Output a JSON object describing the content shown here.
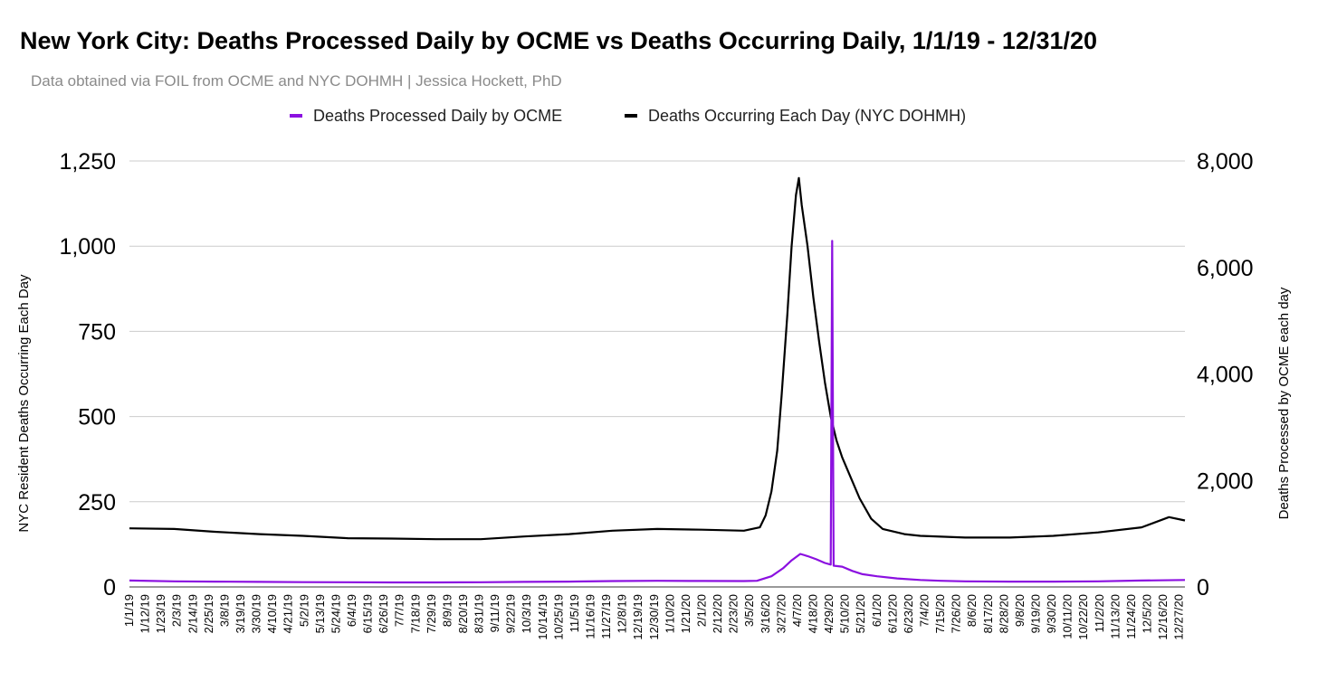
{
  "chart_data": {
    "type": "line",
    "title": "New York City: Deaths Processed Daily by OCME vs Deaths Occurring Daily, 1/1/19 - 12/31/20",
    "subtitle": "Data obtained via FOIL from OCME and NYC DOHMH | Jessica Hockett, PhD",
    "ylabel_left": "NYC Resident Deaths Occurring Each Day",
    "ylabel_right": "Deaths Processed by OCME each day",
    "ylim_left": [
      0,
      1250
    ],
    "ylim_right": [
      0,
      8000
    ],
    "yticks_left": [
      "0",
      "250",
      "500",
      "750",
      "1,000",
      "1,250"
    ],
    "yticks_right": [
      "0",
      "2,000",
      "4,000",
      "6,000",
      "8,000"
    ],
    "x_start_date": "1/1/19",
    "x_end_date": "12/31/20",
    "xticks": [
      "1/1/19",
      "1/12/19",
      "1/23/19",
      "2/3/19",
      "2/14/19",
      "2/25/19",
      "3/8/19",
      "3/19/19",
      "3/30/19",
      "4/10/19",
      "4/21/19",
      "5/2/19",
      "5/13/19",
      "5/24/19",
      "6/4/19",
      "6/15/19",
      "6/26/19",
      "7/7/19",
      "7/18/19",
      "7/29/19",
      "8/9/19",
      "8/20/19",
      "8/31/19",
      "9/11/19",
      "9/22/19",
      "10/3/19",
      "10/14/19",
      "10/25/19",
      "11/5/19",
      "11/16/19",
      "11/27/19",
      "12/8/19",
      "12/19/19",
      "12/30/19",
      "1/10/20",
      "1/21/20",
      "2/1/20",
      "2/12/20",
      "2/23/20",
      "3/5/20",
      "3/16/20",
      "3/27/20",
      "4/7/20",
      "4/18/20",
      "4/29/20",
      "5/10/20",
      "5/21/20",
      "6/1/20",
      "6/12/20",
      "6/23/20",
      "7/4/20",
      "7/15/20",
      "7/26/20",
      "8/6/20",
      "8/17/20",
      "8/28/20",
      "9/8/20",
      "9/19/20",
      "9/30/20",
      "10/11/20",
      "10/22/20",
      "11/2/20",
      "11/13/20",
      "11/24/20",
      "12/5/20",
      "12/16/20",
      "12/27/20"
    ],
    "grid": true,
    "legend_position": "top",
    "series": [
      {
        "name": "Deaths Processed Daily by OCME",
        "axis": "right",
        "color": "#8b10e0",
        "points": [
          [
            "1/1/19",
            120
          ],
          [
            "2/1/19",
            105
          ],
          [
            "3/1/19",
            100
          ],
          [
            "4/1/19",
            95
          ],
          [
            "5/1/19",
            90
          ],
          [
            "6/1/19",
            88
          ],
          [
            "7/1/19",
            85
          ],
          [
            "8/1/19",
            85
          ],
          [
            "9/1/19",
            88
          ],
          [
            "10/1/19",
            95
          ],
          [
            "11/1/19",
            100
          ],
          [
            "12/1/19",
            110
          ],
          [
            "1/1/20",
            115
          ],
          [
            "2/1/20",
            112
          ],
          [
            "3/1/20",
            110
          ],
          [
            "3/10/20",
            115
          ],
          [
            "3/20/20",
            200
          ],
          [
            "3/28/20",
            350
          ],
          [
            "4/3/20",
            500
          ],
          [
            "4/9/20",
            620
          ],
          [
            "4/14/20",
            580
          ],
          [
            "4/20/20",
            520
          ],
          [
            "4/26/20",
            450
          ],
          [
            "4/30/20",
            420
          ],
          [
            "5/1/20",
            6500
          ],
          [
            "5/2/20",
            400
          ],
          [
            "5/8/20",
            380
          ],
          [
            "5/15/20",
            300
          ],
          [
            "5/22/20",
            240
          ],
          [
            "6/1/20",
            200
          ],
          [
            "6/15/20",
            160
          ],
          [
            "7/1/20",
            130
          ],
          [
            "7/15/20",
            115
          ],
          [
            "8/1/20",
            105
          ],
          [
            "9/1/20",
            100
          ],
          [
            "10/1/20",
            100
          ],
          [
            "11/1/20",
            105
          ],
          [
            "12/1/20",
            120
          ],
          [
            "12/31/20",
            130
          ]
        ]
      },
      {
        "name": "Deaths Occurring Each Day (NYC DOHMH)",
        "axis": "left",
        "color": "#000000",
        "points": [
          [
            "1/1/19",
            172
          ],
          [
            "2/1/19",
            170
          ],
          [
            "3/1/19",
            162
          ],
          [
            "4/1/19",
            155
          ],
          [
            "5/1/19",
            150
          ],
          [
            "6/1/19",
            143
          ],
          [
            "7/1/19",
            142
          ],
          [
            "8/1/19",
            140
          ],
          [
            "9/1/19",
            140
          ],
          [
            "10/1/19",
            148
          ],
          [
            "11/1/19",
            155
          ],
          [
            "12/1/19",
            165
          ],
          [
            "1/1/20",
            170
          ],
          [
            "2/1/20",
            168
          ],
          [
            "3/1/20",
            165
          ],
          [
            "3/12/20",
            175
          ],
          [
            "3/16/20",
            210
          ],
          [
            "3/20/20",
            280
          ],
          [
            "3/24/20",
            400
          ],
          [
            "3/27/20",
            560
          ],
          [
            "3/31/20",
            800
          ],
          [
            "4/3/20",
            1000
          ],
          [
            "4/6/20",
            1150
          ],
          [
            "4/8/20",
            1200
          ],
          [
            "4/10/20",
            1120
          ],
          [
            "4/14/20",
            1000
          ],
          [
            "4/18/20",
            850
          ],
          [
            "4/22/20",
            720
          ],
          [
            "4/26/20",
            600
          ],
          [
            "4/30/20",
            500
          ],
          [
            "5/4/20",
            430
          ],
          [
            "5/8/20",
            380
          ],
          [
            "5/14/20",
            320
          ],
          [
            "5/20/20",
            260
          ],
          [
            "5/28/20",
            200
          ],
          [
            "6/5/20",
            170
          ],
          [
            "6/20/20",
            155
          ],
          [
            "7/1/20",
            150
          ],
          [
            "8/1/20",
            145
          ],
          [
            "9/1/20",
            145
          ],
          [
            "10/1/20",
            150
          ],
          [
            "11/1/20",
            160
          ],
          [
            "12/1/20",
            175
          ],
          [
            "12/20/20",
            205
          ],
          [
            "12/31/20",
            195
          ]
        ]
      }
    ]
  }
}
